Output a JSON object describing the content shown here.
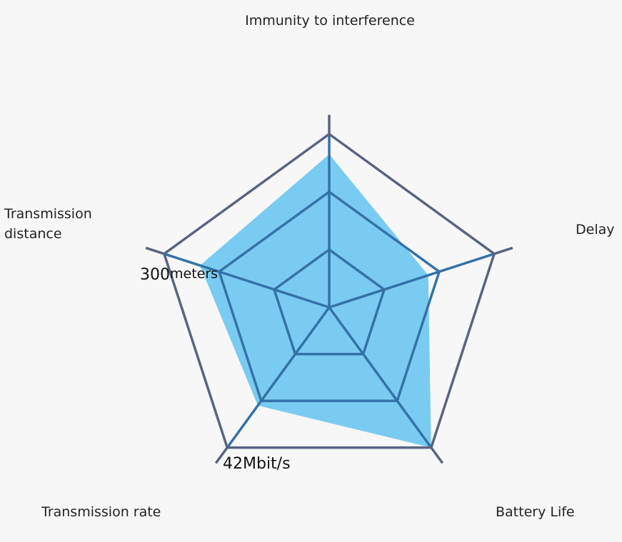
{
  "chart_data": {
    "type": "radar",
    "title": "",
    "axes": [
      "Immunity to interference",
      "Delay",
      "Battery Life",
      "Transmission rate",
      "Transmission distance"
    ],
    "range": [
      0,
      3
    ],
    "rings": 3,
    "series": [
      {
        "values": [
          2.65,
          1.8,
          3.0,
          2.1,
          2.35
        ]
      }
    ],
    "annotations": [
      {
        "axis": "Transmission distance",
        "value_text": "300",
        "unit_text": "meters"
      },
      {
        "axis": "Transmission rate",
        "value_text": "42Mbit/s"
      }
    ],
    "colors": {
      "grid": "#5a6482",
      "fill": "#7acbf1",
      "spoke": "#3372a8",
      "inner_grid": "#3372a8"
    }
  }
}
